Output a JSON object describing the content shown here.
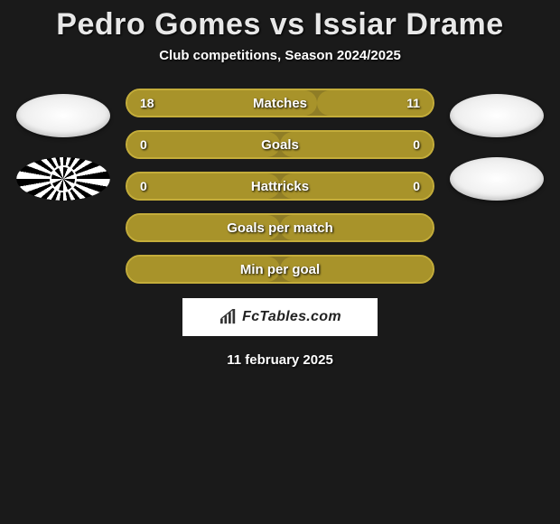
{
  "header": {
    "title": "Pedro Gomes vs Issiar Drame",
    "subtitle": "Club competitions, Season 2024/2025"
  },
  "colors": {
    "accent": "#a8932a",
    "border": "#c4ad3a",
    "neutral_bar": "#8f7d26",
    "text": "#ffffff",
    "background": "#1a1a1a",
    "badge_light": "#f0f0f0"
  },
  "left_team": {
    "badges": [
      {
        "style": "plain"
      },
      {
        "style": "stripes"
      }
    ]
  },
  "right_team": {
    "badges": [
      {
        "style": "plain"
      },
      {
        "style": "plain"
      }
    ]
  },
  "stats": [
    {
      "label": "Matches",
      "left_value": "18",
      "right_value": "11",
      "left_pct": 62,
      "right_pct": 38,
      "show_values": true
    },
    {
      "label": "Goals",
      "left_value": "0",
      "right_value": "0",
      "left_pct": 50,
      "right_pct": 50,
      "show_values": true
    },
    {
      "label": "Hattricks",
      "left_value": "0",
      "right_value": "0",
      "left_pct": 50,
      "right_pct": 50,
      "show_values": true
    },
    {
      "label": "Goals per match",
      "left_value": "",
      "right_value": "",
      "left_pct": 50,
      "right_pct": 50,
      "show_values": false
    },
    {
      "label": "Min per goal",
      "left_value": "",
      "right_value": "",
      "left_pct": 50,
      "right_pct": 50,
      "show_values": false
    }
  ],
  "brand": {
    "label": "FcTables.com"
  },
  "footer": {
    "date": "11 february 2025"
  },
  "typography": {
    "title_fontsize": 34,
    "stat_fontsize": 15
  }
}
